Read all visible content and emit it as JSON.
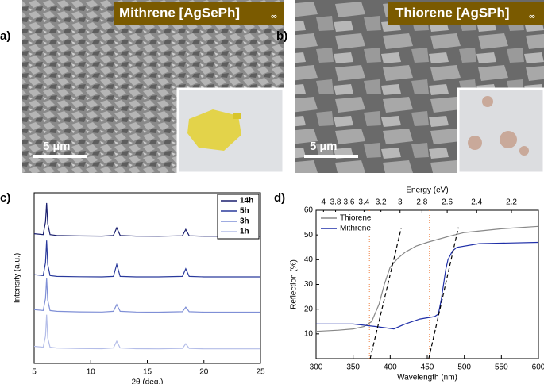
{
  "panels": [
    {
      "label": "a)",
      "title": "Mithrene [AgSePh]",
      "title_sub": "∞",
      "scale_bar": "5 µm"
    },
    {
      "label": "b)",
      "title": "Thiorene [AgSPh]",
      "title_sub": "∞",
      "scale_bar": "5 µm"
    }
  ],
  "chart_data": [
    {
      "type": "line",
      "label": "c)",
      "xlabel": "2θ (deg.)",
      "ylabel": "Intensity (a.u.)",
      "xlim": [
        5,
        25
      ],
      "xticks": [
        5,
        10,
        15,
        20,
        25
      ],
      "ylim": [
        0,
        10
      ],
      "legend": "top-right",
      "x": [
        5,
        5.8,
        6.0,
        6.1,
        6.2,
        6.4,
        7,
        9,
        11,
        12.0,
        12.3,
        12.6,
        14,
        16,
        18.1,
        18.4,
        18.7,
        20,
        22.5,
        25
      ],
      "series": [
        {
          "name": "14h",
          "color": "#1a1f6e",
          "values": [
            7.6,
            7.55,
            8.3,
            9.4,
            8.2,
            7.55,
            7.5,
            7.47,
            7.46,
            7.5,
            7.95,
            7.5,
            7.46,
            7.45,
            7.48,
            7.85,
            7.48,
            7.45,
            7.45,
            7.45
          ]
        },
        {
          "name": "5h",
          "color": "#2a3a9c",
          "values": [
            5.2,
            5.15,
            5.9,
            7.2,
            5.8,
            5.15,
            5.1,
            5.08,
            5.07,
            5.1,
            5.8,
            5.1,
            5.07,
            5.07,
            5.1,
            5.55,
            5.1,
            5.07,
            5.07,
            5.07
          ]
        },
        {
          "name": "3h",
          "color": "#7f8fd6",
          "values": [
            3.15,
            3.1,
            3.8,
            5.0,
            3.7,
            3.1,
            3.05,
            3.02,
            3.01,
            3.05,
            3.45,
            3.05,
            3.01,
            3.0,
            3.03,
            3.3,
            3.03,
            3.0,
            3.0,
            3.0
          ]
        },
        {
          "name": "1h",
          "color": "#b4bde8",
          "values": [
            1.0,
            0.95,
            1.6,
            2.85,
            1.5,
            0.95,
            0.9,
            0.87,
            0.86,
            0.9,
            1.3,
            0.9,
            0.86,
            0.85,
            0.88,
            1.15,
            0.88,
            0.85,
            0.85,
            0.85
          ]
        }
      ]
    },
    {
      "type": "line",
      "label": "d)",
      "xlabel": "Wavelength (nm)",
      "ylabel": "Reflection (%)",
      "x2label": "Energy (eV)",
      "xlim": [
        300,
        600
      ],
      "xticks": [
        300,
        350,
        400,
        450,
        500,
        550,
        600
      ],
      "ylim": [
        0,
        60
      ],
      "yticks": [
        10,
        20,
        30,
        40,
        50,
        60
      ],
      "legend": "top-left",
      "x2ticks": [
        {
          "value": 310,
          "label": "4"
        },
        {
          "value": 326.3,
          "label": "3.8"
        },
        {
          "value": 344.4,
          "label": "3.6"
        },
        {
          "value": 364.7,
          "label": "3.4"
        },
        {
          "value": 387.5,
          "label": "3.2"
        },
        {
          "value": 413.3,
          "label": "3"
        },
        {
          "value": 442.9,
          "label": "2.8"
        },
        {
          "value": 476.9,
          "label": "2.6"
        },
        {
          "value": 516.7,
          "label": "2.4"
        },
        {
          "value": 563.6,
          "label": "2.2"
        }
      ],
      "series": [
        {
          "name": "Thiorene",
          "color": "#888888",
          "x": [
            300,
            330,
            350,
            365,
            375,
            385,
            392,
            400,
            410,
            420,
            435,
            450,
            480,
            500,
            550,
            600
          ],
          "values": [
            11,
            11.5,
            12,
            13,
            15,
            22,
            30,
            37,
            40.5,
            43,
            45.5,
            47,
            49.5,
            51,
            52.5,
            53.5
          ]
        },
        {
          "name": "Mithrene",
          "color": "#1f2fa8",
          "x": [
            300,
            330,
            350,
            380,
            405,
            420,
            440,
            460,
            465,
            469,
            472,
            475,
            478,
            484,
            490,
            520,
            600
          ],
          "values": [
            14,
            14,
            14,
            13,
            12,
            14,
            16,
            17,
            18,
            24,
            30,
            36,
            40,
            43.5,
            45,
            46.5,
            47
          ]
        }
      ],
      "tangents": [
        {
          "x": [
            373,
            414.7
          ],
          "values": [
            0,
            52.6
          ]
        },
        {
          "x": [
            452,
            492
          ],
          "values": [
            0,
            53
          ]
        }
      ],
      "markers": [
        372,
        453
      ]
    }
  ]
}
